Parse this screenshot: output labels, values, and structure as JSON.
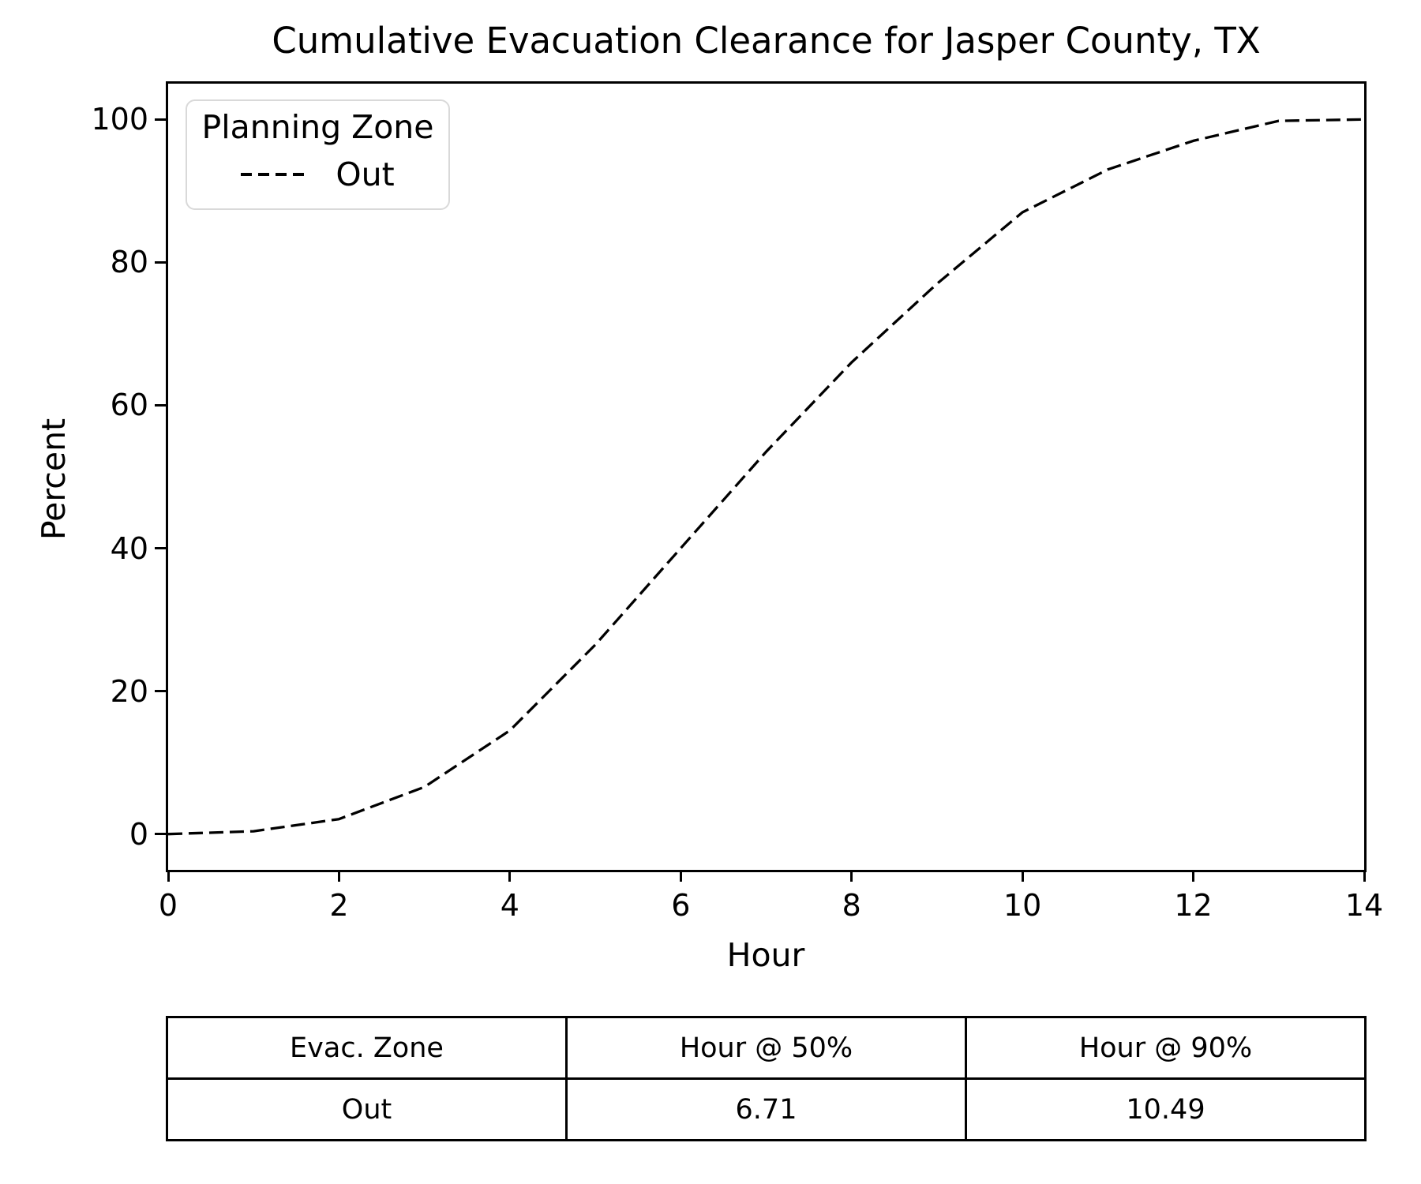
{
  "chart_data": {
    "type": "line",
    "title": "Cumulative Evacuation Clearance for Jasper County, TX",
    "xlabel": "Hour",
    "ylabel": "Percent",
    "x": [
      0,
      1,
      2,
      3,
      4,
      5,
      6,
      7,
      8,
      9,
      10,
      11,
      12,
      13,
      14
    ],
    "series": [
      {
        "name": "Out",
        "values": [
          0,
          0.4,
          2.1,
          6.6,
          14.5,
          26.5,
          40,
          53.5,
          66,
          77,
          87,
          93,
          97,
          99.8,
          100
        ],
        "line_style": "dashed",
        "color": "#000000"
      }
    ],
    "xlim": [
      0,
      14
    ],
    "ylim": [
      -5,
      105
    ],
    "xticks": [
      "0",
      "2",
      "4",
      "6",
      "8",
      "10",
      "12",
      "14"
    ],
    "xtick_values": [
      0,
      2,
      4,
      6,
      8,
      10,
      12,
      14
    ],
    "yticks": [
      "0",
      "20",
      "40",
      "60",
      "80",
      "100"
    ],
    "ytick_values": [
      0,
      20,
      40,
      60,
      80,
      100
    ],
    "grid": false,
    "legend": {
      "title": "Planning Zone",
      "position": "upper-left",
      "entries": [
        {
          "label": "Out",
          "line_style": "dashed",
          "color": "#000000"
        }
      ]
    },
    "colors": {
      "line": "#000000",
      "legend_border": "#d9d9d9",
      "spine": "#000000"
    }
  },
  "table": {
    "headers": [
      "Evac. Zone",
      "Hour @ 50%",
      "Hour @ 90%"
    ],
    "rows": [
      [
        "Out",
        "6.71",
        "10.49"
      ]
    ]
  }
}
